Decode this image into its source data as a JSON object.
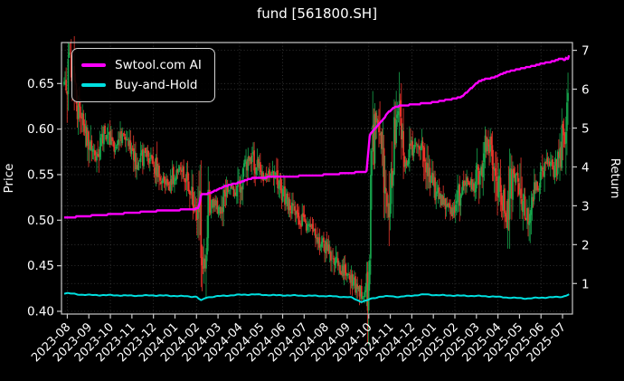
{
  "title": "fund [561800.SH]",
  "legend": {
    "items": [
      {
        "label": "Swtool.com AI",
        "color": "#ff00ff"
      },
      {
        "label": "Buy-and-Hold",
        "color": "#00e0e0"
      }
    ]
  },
  "axes": {
    "left": {
      "label": "Price",
      "ticks": [
        "0.40",
        "0.45",
        "0.50",
        "0.55",
        "0.60",
        "0.65"
      ],
      "lim": [
        0.397,
        0.695
      ]
    },
    "right": {
      "label": "Return",
      "ticks": [
        "1",
        "2",
        "3",
        "4",
        "5",
        "6",
        "7"
      ],
      "lim": [
        0.215,
        7.2
      ]
    },
    "x": {
      "tick_labels": [
        "2023-08",
        "2023-09",
        "2023-10",
        "2023-11",
        "2023-12",
        "2024-01",
        "2024-02",
        "2024-03",
        "2024-04",
        "2024-05",
        "2024-06",
        "2024-07",
        "2024-08",
        "2024-09",
        "2024-10",
        "2024-11",
        "2024-12",
        "2025-01",
        "2025-02",
        "2025-03",
        "2025-04",
        "2025-05",
        "2025-06",
        "2025-07"
      ],
      "lim_months": [
        -0.27,
        23.46
      ]
    }
  },
  "colors": {
    "background": "#000000",
    "text": "#ffffff",
    "grid": "#3d3d3d",
    "spine": "#c8c8c8",
    "candle_up": "#17a64d",
    "candle_down": "#ea352b",
    "ai_line": "#ff00ff",
    "buyhold_line": "#00e0e0"
  },
  "chart_data": {
    "type": "candlestick",
    "x_unit": "months_since_2023-08",
    "n_candles": 494,
    "candle_month_range": [
      -0.15,
      23.3
    ],
    "price_close_anchors": {
      "t": [
        0.0,
        0.08,
        0.3,
        0.6,
        1.0,
        1.3,
        1.7,
        2.0,
        2.3,
        2.6,
        3.0,
        3.3,
        3.6,
        4.0,
        4.3,
        4.7,
        5.0,
        5.3,
        5.7,
        6.0,
        6.18,
        6.28,
        6.5,
        6.8,
        7.1,
        7.4,
        7.8,
        8.1,
        8.45,
        8.8,
        9.1,
        9.5,
        9.9,
        10.3,
        10.7,
        11.0,
        11.4,
        11.8,
        12.2,
        12.6,
        13.0,
        13.4,
        13.75,
        14.0,
        14.12,
        14.3,
        14.5,
        14.7,
        14.9,
        15.1,
        15.35,
        15.55,
        15.8,
        16.1,
        16.4,
        16.8,
        17.2,
        17.6,
        18.0,
        18.3,
        18.6,
        18.9,
        19.2,
        19.5,
        19.8,
        20.15,
        20.4,
        20.6,
        20.9,
        21.3,
        21.6,
        22.0,
        22.3,
        22.6,
        22.9,
        23.1,
        23.3
      ],
      "v": [
        0.65,
        0.684,
        0.636,
        0.612,
        0.588,
        0.57,
        0.597,
        0.588,
        0.578,
        0.592,
        0.576,
        0.56,
        0.574,
        0.566,
        0.548,
        0.538,
        0.552,
        0.557,
        0.532,
        0.512,
        0.505,
        0.438,
        0.505,
        0.52,
        0.512,
        0.535,
        0.528,
        0.548,
        0.572,
        0.558,
        0.545,
        0.552,
        0.533,
        0.519,
        0.506,
        0.497,
        0.489,
        0.476,
        0.465,
        0.45,
        0.44,
        0.426,
        0.417,
        0.43,
        0.568,
        0.598,
        0.608,
        0.545,
        0.512,
        0.565,
        0.633,
        0.572,
        0.562,
        0.585,
        0.578,
        0.548,
        0.528,
        0.515,
        0.508,
        0.535,
        0.545,
        0.538,
        0.56,
        0.586,
        0.56,
        0.525,
        0.502,
        0.538,
        0.55,
        0.5,
        0.53,
        0.548,
        0.565,
        0.552,
        0.575,
        0.6,
        0.632
      ]
    },
    "series": [
      {
        "name": "Swtool.com AI",
        "axis": "return",
        "color": "#ff00ff",
        "anchors": {
          "t": [
            0.0,
            0.5,
            1.0,
            1.5,
            2.0,
            2.5,
            3.0,
            3.5,
            4.0,
            4.5,
            5.0,
            5.5,
            5.9,
            6.1,
            6.22,
            6.6,
            7.0,
            7.3,
            7.6,
            8.0,
            8.3,
            8.6,
            9.0,
            9.5,
            10.0,
            10.5,
            11.0,
            11.5,
            12.0,
            12.5,
            13.0,
            13.5,
            13.9,
            14.05,
            14.3,
            14.6,
            14.9,
            15.2,
            15.5,
            16.0,
            16.5,
            17.0,
            17.5,
            18.0,
            18.3,
            18.6,
            18.9,
            19.1,
            19.4,
            19.8,
            20.2,
            20.6,
            21.0,
            21.4,
            21.8,
            22.2,
            22.6,
            23.0,
            23.08,
            23.18,
            23.24,
            23.3
          ],
          "v": [
            2.7,
            2.72,
            2.74,
            2.76,
            2.78,
            2.8,
            2.82,
            2.84,
            2.86,
            2.88,
            2.89,
            2.9,
            2.92,
            2.94,
            3.3,
            3.32,
            3.42,
            3.5,
            3.55,
            3.6,
            3.66,
            3.71,
            3.73,
            3.74,
            3.75,
            3.76,
            3.77,
            3.78,
            3.8,
            3.82,
            3.84,
            3.86,
            3.88,
            4.85,
            5.0,
            5.18,
            5.4,
            5.54,
            5.58,
            5.6,
            5.63,
            5.66,
            5.71,
            5.76,
            5.8,
            5.94,
            6.1,
            6.2,
            6.26,
            6.3,
            6.4,
            6.47,
            6.52,
            6.57,
            6.62,
            6.68,
            6.72,
            6.8,
            6.72,
            6.82,
            6.74,
            6.86
          ]
        }
      },
      {
        "name": "Buy-and-Hold",
        "axis": "return",
        "color": "#00e0e0",
        "anchors": {
          "t": [
            0.0,
            0.5,
            1.0,
            2.0,
            3.0,
            4.0,
            5.0,
            6.0,
            6.22,
            6.45,
            7.0,
            8.0,
            8.6,
            9.5,
            10.5,
            11.5,
            12.5,
            13.2,
            13.65,
            13.9,
            14.05,
            14.5,
            15.0,
            15.4,
            16.0,
            16.6,
            17.2,
            18.0,
            19.0,
            19.8,
            20.4,
            21.3,
            22.0,
            22.6,
            23.0,
            23.3
          ],
          "v": [
            0.75,
            0.72,
            0.705,
            0.7,
            0.687,
            0.695,
            0.682,
            0.66,
            0.56,
            0.64,
            0.675,
            0.71,
            0.72,
            0.7,
            0.693,
            0.684,
            0.668,
            0.64,
            0.53,
            0.56,
            0.6,
            0.66,
            0.675,
            0.655,
            0.69,
            0.72,
            0.7,
            0.69,
            0.68,
            0.665,
            0.64,
            0.615,
            0.635,
            0.648,
            0.66,
            0.72
          ]
        }
      }
    ],
    "grid": {
      "horizontal": "price_and_return_ticks",
      "vertical_every_n_months": 2,
      "style": "dotted"
    },
    "legend_position": "upper left"
  }
}
